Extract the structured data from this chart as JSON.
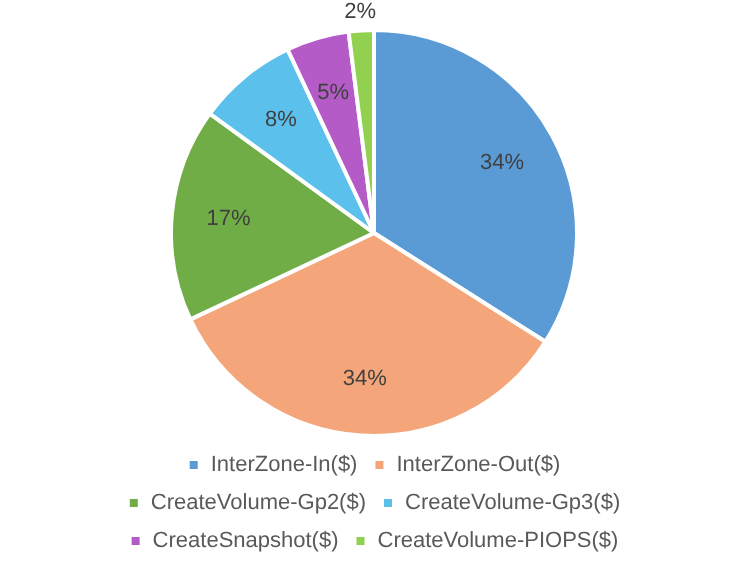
{
  "chart_data": {
    "type": "pie",
    "categories": [
      "InterZone-In($)",
      "InterZone-Out($)",
      "CreateVolume-Gp2($)",
      "CreateVolume-Gp3($)",
      "CreateSnapshot($)",
      "CreateVolume-PIOPS($)"
    ],
    "values": [
      34,
      34,
      17,
      8,
      5,
      2
    ],
    "colors": [
      "#5b9bd5",
      "#f4a67a",
      "#70ad47",
      "#5bc0eb",
      "#b45bc8",
      "#92d050"
    ],
    "value_labels": [
      "34%",
      "34%",
      "17%",
      "8%",
      "5%",
      "2%"
    ],
    "legend": "bottom"
  }
}
